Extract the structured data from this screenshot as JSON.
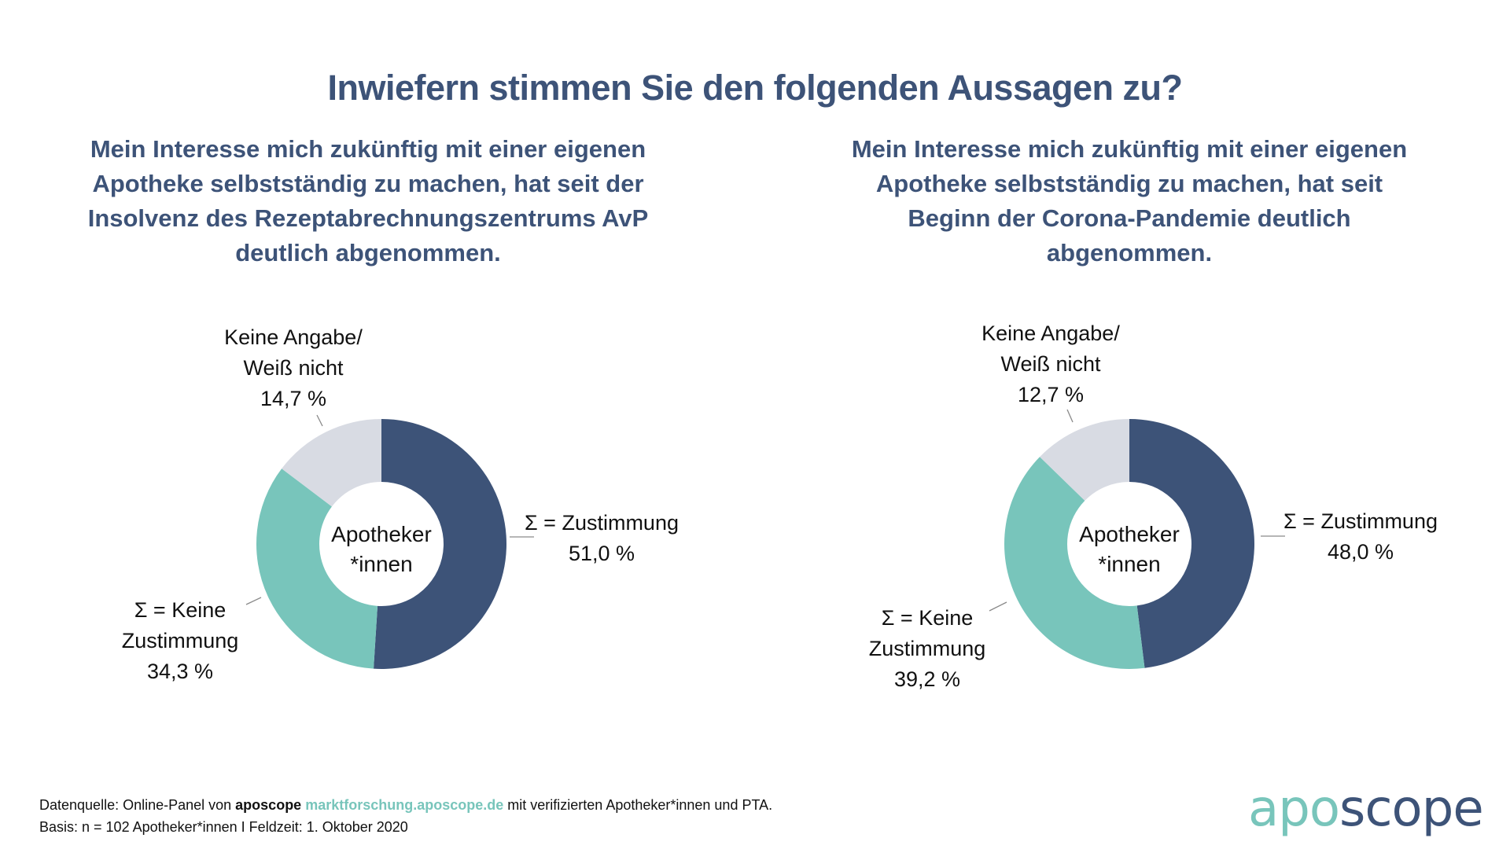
{
  "title": "Inwiefern stimmen Sie den folgenden Aussagen zu?",
  "colors": {
    "zustimmung": "#3d5378",
    "keine_zustimmung": "#78c5bb",
    "keine_angabe": "#d8dbe3",
    "heading": "#3d5378",
    "accent": "#78c5bb"
  },
  "chart_data": [
    {
      "type": "pie",
      "donut": true,
      "title": "Mein Interesse mich zukünftig mit einer eigenen Apotheke selbstständig zu machen, hat seit der Insolvenz des Rezeptabrechnungszentrums AvP deutlich abgenommen.",
      "title_lines": [
        "Mein Interesse mich zukünftig mit einer eigenen",
        "Apotheke selbstständig zu machen, hat seit der",
        "Insolvenz des Rezeptabrechnungszentrums AvP",
        "deutlich abgenommen."
      ],
      "center_label": [
        "Apotheker",
        "*innen"
      ],
      "slices": [
        {
          "key": "zustimmung",
          "label_lines": [
            "Σ = Zustimmung"
          ],
          "value": 51.0,
          "value_label": "51,0 %",
          "color": "#3d5378"
        },
        {
          "key": "keine_zustimmung",
          "label_lines": [
            "Σ = Keine",
            "Zustimmung"
          ],
          "value": 34.3,
          "value_label": "34,3 %",
          "color": "#78c5bb"
        },
        {
          "key": "keine_angabe",
          "label_lines": [
            "Keine Angabe/",
            "Weiß nicht"
          ],
          "value": 14.7,
          "value_label": "14,7 %",
          "color": "#d8dbe3"
        }
      ]
    },
    {
      "type": "pie",
      "donut": true,
      "title": "Mein Interesse mich zukünftig mit einer eigenen Apotheke selbstständig zu machen, hat seit Beginn der Corona-Pandemie deutlich abgenommen.",
      "title_lines": [
        "Mein Interesse mich zukünftig mit einer eigenen",
        "Apotheke selbstständig zu machen, hat seit",
        "Beginn der Corona-Pandemie deutlich",
        "abgenommen."
      ],
      "center_label": [
        "Apotheker",
        "*innen"
      ],
      "slices": [
        {
          "key": "zustimmung",
          "label_lines": [
            "Σ = Zustimmung"
          ],
          "value": 48.0,
          "value_label": "48,0 %",
          "color": "#3d5378"
        },
        {
          "key": "keine_zustimmung",
          "label_lines": [
            "Σ = Keine",
            "Zustimmung"
          ],
          "value": 39.2,
          "value_label": "39,2 %",
          "color": "#78c5bb"
        },
        {
          "key": "keine_angabe",
          "label_lines": [
            "Keine Angabe/",
            "Weiß nicht"
          ],
          "value": 12.7,
          "value_label": "12,7 %",
          "color": "#d8dbe3"
        }
      ]
    }
  ],
  "footer": {
    "source_prefix": "Datenquelle: Online-Panel von ",
    "source_brand": "aposcope",
    "source_link": "marktforschung.aposcope.de",
    "source_suffix": " mit verifizierten Apotheker*innen und PTA.",
    "basis": "Basis: n = 102 Apotheker*innen I Feldzeit: 1. Oktober 2020"
  },
  "logo": {
    "part1": "apo",
    "part2": "scope"
  }
}
